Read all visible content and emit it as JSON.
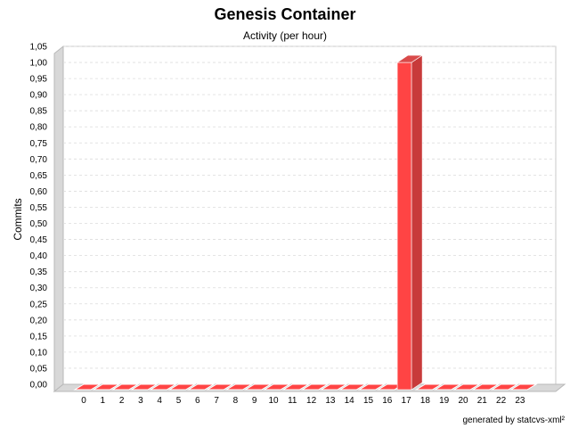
{
  "chart_data": {
    "type": "bar",
    "title": "Genesis Container",
    "subtitle": "Activity (per hour)",
    "xlabel": "",
    "ylabel": "Commits",
    "categories": [
      "0",
      "1",
      "2",
      "3",
      "4",
      "5",
      "6",
      "7",
      "8",
      "9",
      "10",
      "11",
      "12",
      "13",
      "14",
      "15",
      "16",
      "17",
      "18",
      "19",
      "20",
      "21",
      "22",
      "23"
    ],
    "values": [
      0,
      0,
      0,
      0,
      0,
      0,
      0,
      0,
      0,
      0,
      0,
      0,
      0,
      0,
      0,
      0,
      0,
      1,
      0,
      0,
      0,
      0,
      0,
      0
    ],
    "ylim": [
      0,
      1.05
    ],
    "yticks": [
      "0,00",
      "0,05",
      "0,10",
      "0,15",
      "0,20",
      "0,25",
      "0,30",
      "0,35",
      "0,40",
      "0,45",
      "0,50",
      "0,55",
      "0,60",
      "0,65",
      "0,70",
      "0,75",
      "0,80",
      "0,85",
      "0,90",
      "0,95",
      "1,00",
      "1,05"
    ],
    "grid": true,
    "bar_color": "#ff4444",
    "footer": "generated by statcvs-xml²"
  }
}
